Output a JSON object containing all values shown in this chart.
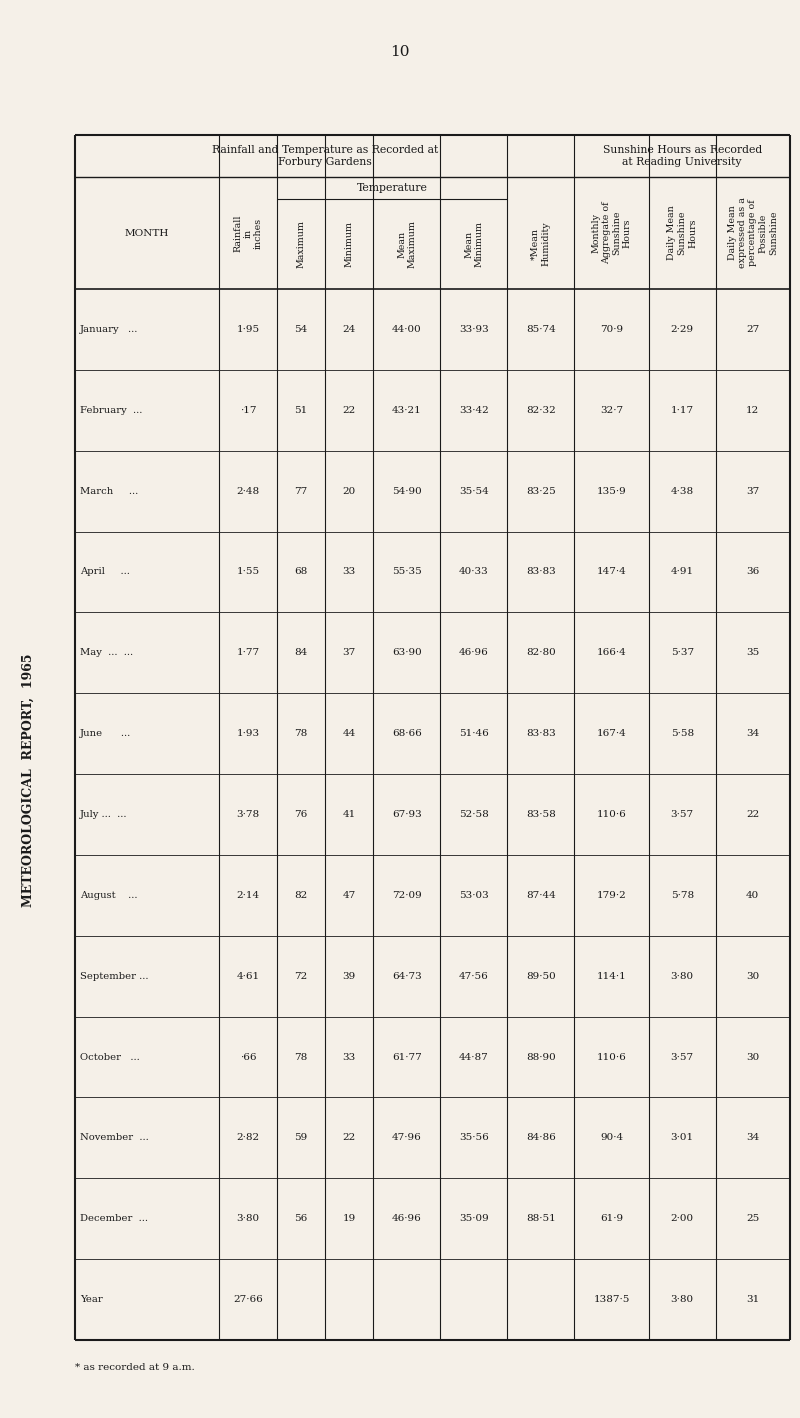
{
  "page_number": "10",
  "main_title": "METEOROLOGICAL REPORT, 1965",
  "bg_color": "#f5f0e8",
  "text_color": "#1a1a1a",
  "months": [
    "January   ...",
    "February  ...",
    "March     ...",
    "April     ...",
    "May  ...  ...",
    "June      ...",
    "July ...  ...",
    "August    ...",
    "September ...",
    "October   ...",
    "November  ...",
    "December  ...",
    "Year"
  ],
  "rainfall": [
    "1·95",
    "·17",
    "2·48",
    "1·55",
    "1·77",
    "1·93",
    "3·78",
    "2·14",
    "4·61",
    "·66",
    "2·82",
    "3·80",
    "27·66"
  ],
  "maximum": [
    "54",
    "51",
    "77",
    "68",
    "84",
    "78",
    "76",
    "82",
    "72",
    "78",
    "59",
    "56",
    ""
  ],
  "minimum": [
    "24",
    "22",
    "20",
    "33",
    "37",
    "44",
    "41",
    "47",
    "39",
    "33",
    "22",
    "19",
    ""
  ],
  "mean_max": [
    "44·00",
    "43·21",
    "54·90",
    "55·35",
    "63·90",
    "68·66",
    "67·93",
    "72·09",
    "64·73",
    "61·77",
    "47·96",
    "46·96",
    ""
  ],
  "mean_min": [
    "33·93",
    "33·42",
    "35·54",
    "40·33",
    "46·96",
    "51·46",
    "52·58",
    "53·03",
    "47·56",
    "44·87",
    "35·56",
    "35·09",
    ""
  ],
  "mean_humidity": [
    "85·74",
    "82·32",
    "83·25",
    "83·83",
    "82·80",
    "83·83",
    "83·58",
    "87·44",
    "89·50",
    "88·90",
    "84·86",
    "88·51",
    ""
  ],
  "monthly_agg": [
    "70·9",
    "32·7",
    "135·9",
    "147·4",
    "166·4",
    "167·4",
    "110·6",
    "179·2",
    "114·1",
    "110·6",
    "90·4",
    "61·9",
    "1387·5"
  ],
  "daily_mean": [
    "2·29",
    "1·17",
    "4·38",
    "4·91",
    "5·37",
    "5·58",
    "3·57",
    "5·78",
    "3·80",
    "3·57",
    "3·01",
    "2·00",
    "3·80"
  ],
  "pct_sunshine": [
    "27",
    "12",
    "37",
    "36",
    "35",
    "34",
    "22",
    "40",
    "30",
    "30",
    "34",
    "25",
    "31"
  ],
  "footnote": "* as recorded at 9 a.m."
}
